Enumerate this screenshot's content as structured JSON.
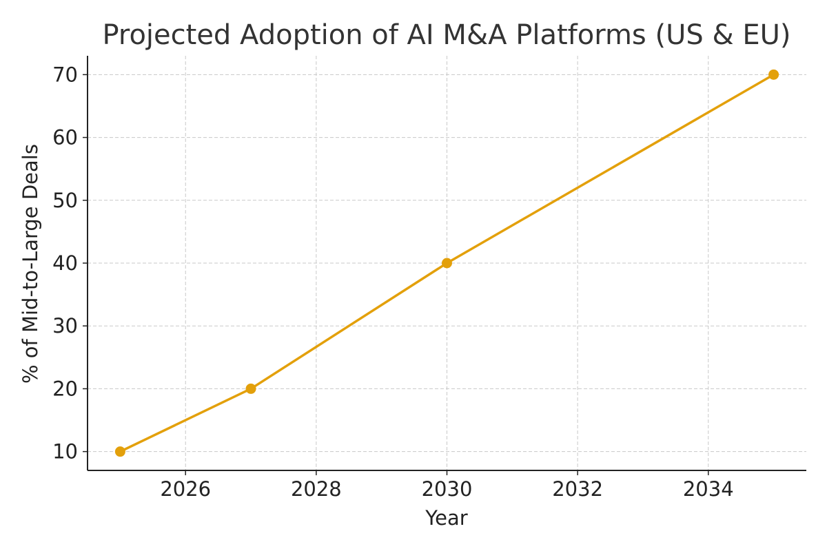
{
  "chart_data": {
    "type": "line",
    "title": "Projected Adoption of AI M&A Platforms (US & EU)",
    "xlabel": "Year",
    "ylabel": "% of Mid-to-Large Deals",
    "x": [
      2025,
      2027,
      2030,
      2035
    ],
    "series": [
      {
        "values": [
          10,
          20,
          40,
          70
        ]
      }
    ],
    "xlim": [
      2024.5,
      2035.5
    ],
    "ylim": [
      7,
      73
    ],
    "xticks": [
      2026,
      2028,
      2030,
      2032,
      2034
    ],
    "yticks": [
      10,
      20,
      30,
      40,
      50,
      60,
      70
    ],
    "grid": true,
    "grid_style": "dashed",
    "markers": true
  },
  "colors": {
    "line": "#E3A00B",
    "grid": "#c8c8c8",
    "axis": "#222222",
    "text": "#222222",
    "title": "#333333"
  }
}
